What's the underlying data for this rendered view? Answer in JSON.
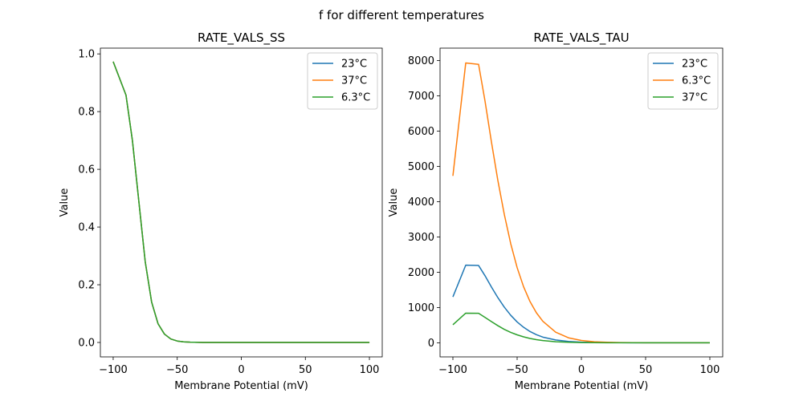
{
  "figure": {
    "suptitle": "f for different temperatures"
  },
  "chart_data": [
    {
      "type": "line",
      "title": "RATE_VALS_SS",
      "xlabel": "Membrane Potential (mV)",
      "ylabel": "Value",
      "xlim": [
        -110,
        110
      ],
      "ylim": [
        -0.05,
        1.02
      ],
      "xticks": [
        -100,
        -50,
        0,
        50,
        100
      ],
      "xtick_labels": [
        "−100",
        "−50",
        "0",
        "50",
        "100"
      ],
      "yticks": [
        0.0,
        0.2,
        0.4,
        0.6,
        0.8,
        1.0
      ],
      "ytick_labels": [
        "0.0",
        "0.2",
        "0.4",
        "0.6",
        "0.8",
        "1.0"
      ],
      "legend_position": "top-right",
      "x": [
        -100,
        -90,
        -85,
        -80,
        -75,
        -70,
        -65,
        -60,
        -55,
        -50,
        -45,
        -40,
        -30,
        -20,
        -10,
        0,
        10,
        20,
        30,
        40,
        50,
        60,
        70,
        80,
        90,
        100
      ],
      "series": [
        {
          "name": "23°C",
          "color": "#1f77b4",
          "values": [
            0.973,
            0.857,
            0.7,
            0.49,
            0.28,
            0.14,
            0.065,
            0.029,
            0.012,
            0.005,
            0.002,
            0.001,
            0,
            0,
            0,
            0,
            0,
            0,
            0,
            0,
            0,
            0,
            0,
            0,
            0,
            0
          ]
        },
        {
          "name": "37°C",
          "color": "#ff7f0e",
          "values": [
            0.973,
            0.857,
            0.7,
            0.49,
            0.28,
            0.14,
            0.065,
            0.029,
            0.012,
            0.005,
            0.002,
            0.001,
            0,
            0,
            0,
            0,
            0,
            0,
            0,
            0,
            0,
            0,
            0,
            0,
            0,
            0
          ]
        },
        {
          "name": "6.3°C",
          "color": "#2ca02c",
          "values": [
            0.973,
            0.857,
            0.7,
            0.49,
            0.28,
            0.14,
            0.065,
            0.029,
            0.012,
            0.005,
            0.002,
            0.001,
            0,
            0,
            0,
            0,
            0,
            0,
            0,
            0,
            0,
            0,
            0,
            0,
            0,
            0
          ]
        }
      ]
    },
    {
      "type": "line",
      "title": "RATE_VALS_TAU",
      "xlabel": "Membrane Potential (mV)",
      "ylabel": "Value",
      "xlim": [
        -110,
        110
      ],
      "ylim": [
        -400,
        8350
      ],
      "xticks": [
        -100,
        -50,
        0,
        50,
        100
      ],
      "xtick_labels": [
        "−100",
        "−50",
        "0",
        "50",
        "100"
      ],
      "yticks": [
        0,
        1000,
        2000,
        3000,
        4000,
        5000,
        6000,
        7000,
        8000
      ],
      "ytick_labels": [
        "0",
        "1000",
        "2000",
        "3000",
        "4000",
        "5000",
        "6000",
        "7000",
        "8000"
      ],
      "legend_position": "top-right",
      "x": [
        -100,
        -90,
        -80,
        -75,
        -70,
        -65,
        -60,
        -55,
        -50,
        -45,
        -40,
        -35,
        -30,
        -20,
        -10,
        0,
        10,
        20,
        30,
        40,
        50,
        60,
        70,
        80,
        90,
        100
      ],
      "series": [
        {
          "name": "23°C",
          "color": "#1f77b4",
          "values": [
            1300,
            2200,
            2190,
            1900,
            1580,
            1280,
            1010,
            780,
            590,
            440,
            320,
            230,
            160,
            80,
            38,
            18,
            8,
            4,
            2,
            1,
            0,
            0,
            0,
            0,
            0,
            0
          ]
        },
        {
          "name": "6.3°C",
          "color": "#ff7f0e",
          "values": [
            4730,
            7930,
            7890,
            6850,
            5690,
            4600,
            3640,
            2810,
            2130,
            1590,
            1170,
            850,
            610,
            300,
            140,
            66,
            30,
            14,
            6,
            3,
            1,
            0,
            0,
            0,
            0,
            0
          ]
        },
        {
          "name": "37°C",
          "color": "#2ca02c",
          "values": [
            510,
            840,
            835,
            720,
            600,
            485,
            380,
            295,
            225,
            168,
            122,
            88,
            62,
            30,
            14,
            7,
            3,
            1,
            0,
            0,
            0,
            0,
            0,
            0,
            0,
            0
          ]
        }
      ]
    }
  ]
}
